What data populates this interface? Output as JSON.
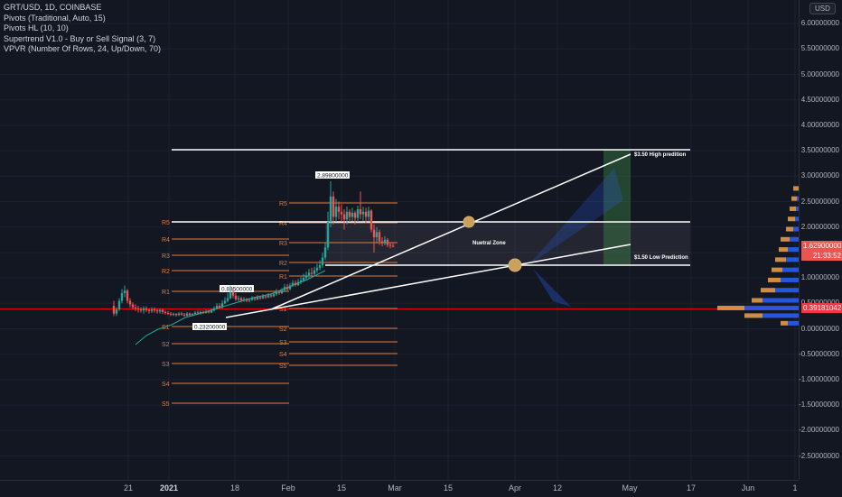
{
  "legend": {
    "title": "GRT/USD, 1D, COINBASE",
    "indicators": [
      "Pivots (Traditional, Auto, 15)",
      "Pivots HL (10, 10)",
      "Supertrend V1.0 - Buy or Sell Signal (3, 7)",
      "VPVR (Number Of Rows, 24, Up/Down, 70)"
    ]
  },
  "currency": "USD",
  "price_axis": {
    "ticks": [
      "6.00000000",
      "5.50000000",
      "5.00000000",
      "4.50000000",
      "4.00000000",
      "3.50000000",
      "3.00000000",
      "2.50000000",
      "2.00000000",
      "1.50000000",
      "1.00000000",
      "0.50000000",
      "0.00000000",
      "-0.50000000",
      "-1.00000000",
      "-1.50000000",
      "-2.00000000",
      "-2.50000000"
    ],
    "last_price": "1.62900000",
    "countdown": "21:33:52",
    "line_price": "0.39181042"
  },
  "time_axis": {
    "labels": [
      {
        "text": "21",
        "bold": false
      },
      {
        "text": "2021",
        "bold": true
      },
      {
        "text": "18",
        "bold": false
      },
      {
        "text": "Feb",
        "bold": false
      },
      {
        "text": "15",
        "bold": false
      },
      {
        "text": "Mar",
        "bold": false
      },
      {
        "text": "15",
        "bold": false
      },
      {
        "text": "Apr",
        "bold": false
      },
      {
        "text": "12",
        "bold": false
      },
      {
        "text": "May",
        "bold": false
      },
      {
        "text": "17",
        "bold": false
      },
      {
        "text": "Jun",
        "bold": false
      },
      {
        "text": "1",
        "bold": false
      }
    ]
  },
  "pivots_left": [
    "R5",
    "R4",
    "R3",
    "R2",
    "R1",
    "S1",
    "S2",
    "S3",
    "S4",
    "S5"
  ],
  "pivots_right": [
    "R5",
    "R4",
    "R3",
    "R2",
    "R1",
    "S1",
    "S2",
    "S3",
    "S4",
    "S5"
  ],
  "pivot_hl_labels": [
    "2.89800000",
    "0.88500000",
    "0.23200000"
  ],
  "annotations": {
    "high": "$3.50 High predition",
    "low": "$1.50 Low Prediction",
    "zone": "Nuetral Zone"
  },
  "colors": {
    "background": "#131722",
    "up": "#26a69a",
    "down": "#ef5350",
    "pivot": "#e07b39",
    "hline": "#ff0000",
    "vp_up": "#f0a24a",
    "vp_down": "#2962ff"
  }
}
